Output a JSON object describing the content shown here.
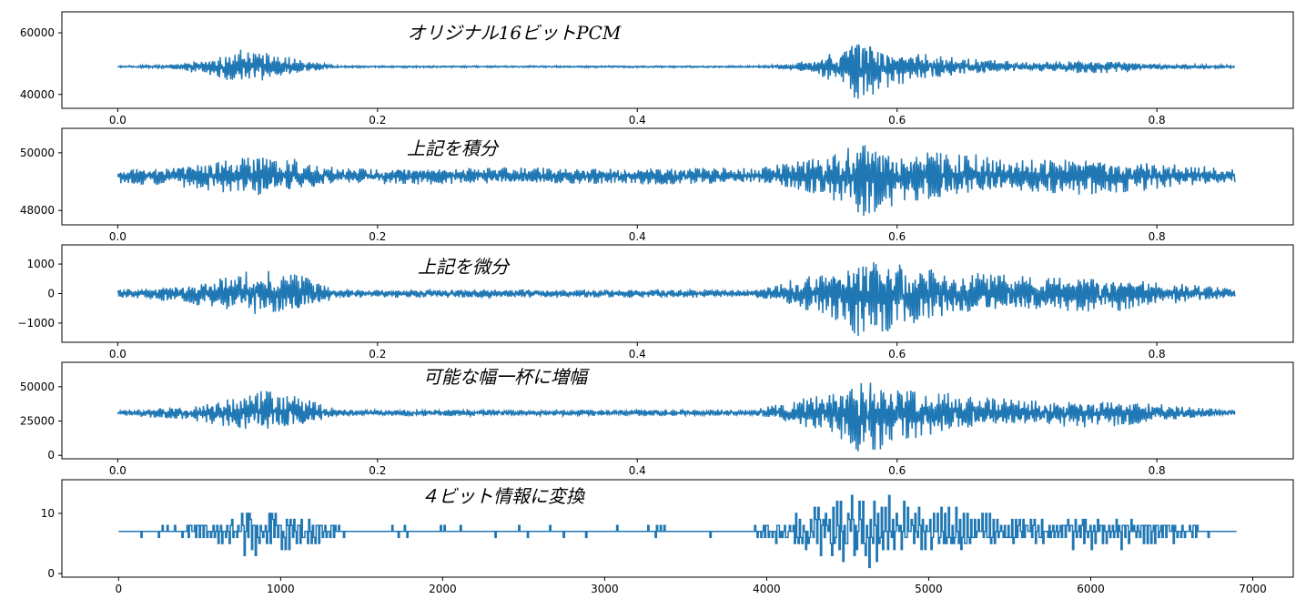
{
  "chart_data": [
    {
      "type": "line",
      "title": "オリジナル16ビットPCM",
      "color": "#1f77b4",
      "xlim": [
        -0.043,
        0.905
      ],
      "ylim": [
        35500,
        66800
      ],
      "xticks": [
        0.0,
        0.2,
        0.4,
        0.6,
        0.8
      ],
      "xtick_labels": [
        "0.0",
        "0.2",
        "0.4",
        "0.6",
        "0.8"
      ],
      "yticks": [
        40000,
        60000
      ],
      "ytick_labels": [
        "40000",
        "60000"
      ],
      "baseline": 49000,
      "envelope": [
        {
          "x": 0.0,
          "a": 300
        },
        {
          "x": 0.045,
          "a": 800
        },
        {
          "x": 0.07,
          "a": 3000
        },
        {
          "x": 0.1,
          "a": 6500
        },
        {
          "x": 0.13,
          "a": 3500
        },
        {
          "x": 0.16,
          "a": 1000
        },
        {
          "x": 0.175,
          "a": 300
        },
        {
          "x": 0.49,
          "a": 300
        },
        {
          "x": 0.52,
          "a": 1000
        },
        {
          "x": 0.545,
          "a": 4000
        },
        {
          "x": 0.57,
          "a": 11000
        },
        {
          "x": 0.6,
          "a": 6000
        },
        {
          "x": 0.65,
          "a": 3000
        },
        {
          "x": 0.7,
          "a": 1500
        },
        {
          "x": 0.76,
          "a": 2500
        },
        {
          "x": 0.8,
          "a": 1000
        },
        {
          "x": 0.86,
          "a": 500
        }
      ]
    },
    {
      "type": "line",
      "title": "上記を積分",
      "color": "#1f77b4",
      "xlim": [
        -0.043,
        0.905
      ],
      "ylim": [
        47500,
        50850
      ],
      "xticks": [
        0.0,
        0.2,
        0.4,
        0.6,
        0.8
      ],
      "xtick_labels": [
        "0.0",
        "0.2",
        "0.4",
        "0.6",
        "0.8"
      ],
      "yticks": [
        48000,
        50000
      ],
      "ytick_labels": [
        "48000",
        "50000"
      ],
      "baseline": 49200,
      "envelope": [
        {
          "x": 0.0,
          "a": 300
        },
        {
          "x": 0.05,
          "a": 400
        },
        {
          "x": 0.08,
          "a": 600
        },
        {
          "x": 0.11,
          "a": 800
        },
        {
          "x": 0.14,
          "a": 600
        },
        {
          "x": 0.17,
          "a": 300
        },
        {
          "x": 0.49,
          "a": 300
        },
        {
          "x": 0.52,
          "a": 500
        },
        {
          "x": 0.55,
          "a": 900
        },
        {
          "x": 0.575,
          "a": 1500
        },
        {
          "x": 0.6,
          "a": 1000
        },
        {
          "x": 0.65,
          "a": 800
        },
        {
          "x": 0.7,
          "a": 600
        },
        {
          "x": 0.76,
          "a": 700
        },
        {
          "x": 0.8,
          "a": 500
        },
        {
          "x": 0.86,
          "a": 300
        }
      ]
    },
    {
      "type": "line",
      "title": "上記を微分",
      "color": "#1f77b4",
      "xlim": [
        -0.043,
        0.905
      ],
      "ylim": [
        -1650,
        1650
      ],
      "xticks": [
        0.0,
        0.2,
        0.4,
        0.6,
        0.8
      ],
      "xtick_labels": [
        "0.0",
        "0.2",
        "0.4",
        "0.6",
        "0.8"
      ],
      "yticks": [
        -1000,
        0,
        1000
      ],
      "ytick_labels": [
        "−1000",
        "0",
        "1000"
      ],
      "baseline": 0,
      "envelope": [
        {
          "x": 0.0,
          "a": 150
        },
        {
          "x": 0.05,
          "a": 300
        },
        {
          "x": 0.08,
          "a": 600
        },
        {
          "x": 0.11,
          "a": 900
        },
        {
          "x": 0.14,
          "a": 700
        },
        {
          "x": 0.17,
          "a": 150
        },
        {
          "x": 0.49,
          "a": 150
        },
        {
          "x": 0.52,
          "a": 500
        },
        {
          "x": 0.55,
          "a": 900
        },
        {
          "x": 0.575,
          "a": 1600
        },
        {
          "x": 0.6,
          "a": 1200
        },
        {
          "x": 0.65,
          "a": 800
        },
        {
          "x": 0.7,
          "a": 600
        },
        {
          "x": 0.76,
          "a": 650
        },
        {
          "x": 0.8,
          "a": 450
        },
        {
          "x": 0.86,
          "a": 150
        }
      ]
    },
    {
      "type": "line",
      "title": "可能な幅一杯に増幅",
      "color": "#1f77b4",
      "xlim": [
        -0.043,
        0.905
      ],
      "ylim": [
        -2500,
        67800
      ],
      "xticks": [
        0.0,
        0.2,
        0.4,
        0.6,
        0.8
      ],
      "xtick_labels": [
        "0.0",
        "0.2",
        "0.4",
        "0.6",
        "0.8"
      ],
      "yticks": [
        0,
        25000,
        50000
      ],
      "ytick_labels": [
        "0",
        "25000",
        "50000"
      ],
      "baseline": 31000,
      "envelope": [
        {
          "x": 0.0,
          "a": 2000
        },
        {
          "x": 0.05,
          "a": 5000
        },
        {
          "x": 0.08,
          "a": 10000
        },
        {
          "x": 0.11,
          "a": 17000
        },
        {
          "x": 0.14,
          "a": 12000
        },
        {
          "x": 0.17,
          "a": 2500
        },
        {
          "x": 0.49,
          "a": 2500
        },
        {
          "x": 0.52,
          "a": 9000
        },
        {
          "x": 0.55,
          "a": 17000
        },
        {
          "x": 0.575,
          "a": 32000
        },
        {
          "x": 0.6,
          "a": 22000
        },
        {
          "x": 0.65,
          "a": 14000
        },
        {
          "x": 0.7,
          "a": 10000
        },
        {
          "x": 0.76,
          "a": 11000
        },
        {
          "x": 0.8,
          "a": 7000
        },
        {
          "x": 0.86,
          "a": 2000
        }
      ]
    },
    {
      "type": "line",
      "step": true,
      "title": "４ビット情報に変換",
      "color": "#1f77b4",
      "xlim": [
        -350,
        7250
      ],
      "ylim": [
        -0.6,
        15.6
      ],
      "xticks": [
        0,
        1000,
        2000,
        3000,
        4000,
        5000,
        6000,
        7000
      ],
      "xtick_labels": [
        "0",
        "1000",
        "2000",
        "3000",
        "4000",
        "5000",
        "6000",
        "7000"
      ],
      "yticks": [
        0,
        10
      ],
      "ytick_labels": [
        "0",
        "10"
      ],
      "baseline": 7,
      "envelope": [
        {
          "x": 0,
          "a": 0.6
        },
        {
          "x": 400,
          "a": 1.2
        },
        {
          "x": 640,
          "a": 2.5
        },
        {
          "x": 880,
          "a": 5
        },
        {
          "x": 1120,
          "a": 3
        },
        {
          "x": 1400,
          "a": 1
        },
        {
          "x": 3900,
          "a": 1
        },
        {
          "x": 4150,
          "a": 3
        },
        {
          "x": 4400,
          "a": 5
        },
        {
          "x": 4600,
          "a": 8
        },
        {
          "x": 4800,
          "a": 6
        },
        {
          "x": 5200,
          "a": 3.5
        },
        {
          "x": 5600,
          "a": 2.5
        },
        {
          "x": 6100,
          "a": 3
        },
        {
          "x": 6400,
          "a": 2
        },
        {
          "x": 6900,
          "a": 0.5
        }
      ]
    }
  ]
}
